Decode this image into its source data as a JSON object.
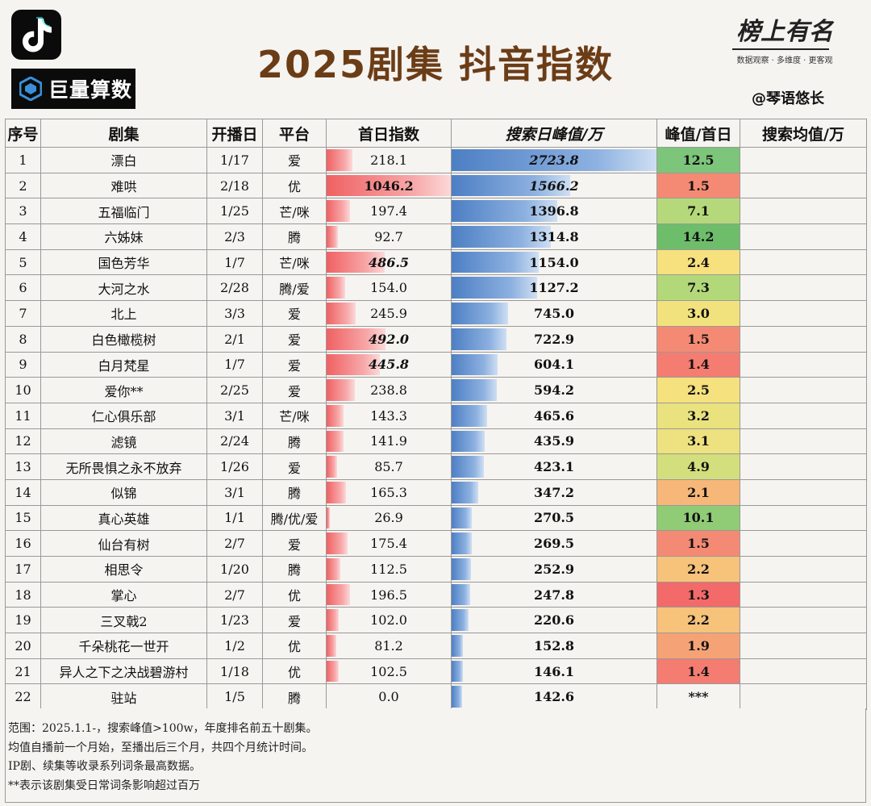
{
  "header": {
    "title": "2025剧集 抖音指数",
    "logo_text": "巨量算数",
    "brand_name": "榜上有名",
    "brand_slogan": "数据观察 · 多维度 · 更客观",
    "author": "@琴语悠长"
  },
  "columns": [
    "序号",
    "剧集",
    "开播日",
    "平台",
    "首日指数",
    "搜索日峰值/万",
    "峰值/首日",
    "搜索均值/万"
  ],
  "rows": [
    {
      "rank": "1",
      "name": "漂白",
      "date": "1/17",
      "platform": "爱",
      "first_day": "218.1",
      "first_day_num": 218.1,
      "peak": "2723.8",
      "peak_num": 2723.8,
      "ratio": "12.5",
      "avg": ""
    },
    {
      "rank": "2",
      "name": "难哄",
      "date": "2/18",
      "platform": "优",
      "first_day": "1046.2",
      "first_day_num": 1046.2,
      "peak": "1566.2",
      "peak_num": 1566.2,
      "ratio": "1.5",
      "avg": ""
    },
    {
      "rank": "3",
      "name": "五福临门",
      "date": "1/25",
      "platform": "芒/咪",
      "first_day": "197.4",
      "first_day_num": 197.4,
      "peak": "1396.8",
      "peak_num": 1396.8,
      "ratio": "7.1",
      "avg": ""
    },
    {
      "rank": "4",
      "name": "六姊妹",
      "date": "2/3",
      "platform": "腾",
      "first_day": "92.7",
      "first_day_num": 92.7,
      "peak": "1314.8",
      "peak_num": 1314.8,
      "ratio": "14.2",
      "avg": ""
    },
    {
      "rank": "5",
      "name": "国色芳华",
      "date": "1/7",
      "platform": "芒/咪",
      "first_day": "486.5",
      "first_day_num": 486.5,
      "peak": "1154.0",
      "peak_num": 1154.0,
      "ratio": "2.4",
      "avg": ""
    },
    {
      "rank": "6",
      "name": "大河之水",
      "date": "2/28",
      "platform": "腾/爱",
      "first_day": "154.0",
      "first_day_num": 154.0,
      "peak": "1127.2",
      "peak_num": 1127.2,
      "ratio": "7.3",
      "avg": ""
    },
    {
      "rank": "7",
      "name": "北上",
      "date": "3/3",
      "platform": "爱",
      "first_day": "245.9",
      "first_day_num": 245.9,
      "peak": "745.0",
      "peak_num": 745.0,
      "ratio": "3.0",
      "avg": ""
    },
    {
      "rank": "8",
      "name": "白色橄榄树",
      "date": "2/1",
      "platform": "爱",
      "first_day": "492.0",
      "first_day_num": 492.0,
      "peak": "722.9",
      "peak_num": 722.9,
      "ratio": "1.5",
      "avg": ""
    },
    {
      "rank": "9",
      "name": "白月梵星",
      "date": "1/7",
      "platform": "爱",
      "first_day": "445.8",
      "first_day_num": 445.8,
      "peak": "604.1",
      "peak_num": 604.1,
      "ratio": "1.4",
      "avg": ""
    },
    {
      "rank": "10",
      "name": "爱你**",
      "date": "2/25",
      "platform": "爱",
      "first_day": "238.8",
      "first_day_num": 238.8,
      "peak": "594.2",
      "peak_num": 594.2,
      "ratio": "2.5",
      "avg": ""
    },
    {
      "rank": "11",
      "name": "仁心俱乐部",
      "date": "3/1",
      "platform": "芒/咪",
      "first_day": "143.3",
      "first_day_num": 143.3,
      "peak": "465.6",
      "peak_num": 465.6,
      "ratio": "3.2",
      "avg": ""
    },
    {
      "rank": "12",
      "name": "滤镜",
      "date": "2/24",
      "platform": "腾",
      "first_day": "141.9",
      "first_day_num": 141.9,
      "peak": "435.9",
      "peak_num": 435.9,
      "ratio": "3.1",
      "avg": ""
    },
    {
      "rank": "13",
      "name": "无所畏惧之永不放弃",
      "date": "1/26",
      "platform": "爱",
      "first_day": "85.7",
      "first_day_num": 85.7,
      "peak": "423.1",
      "peak_num": 423.1,
      "ratio": "4.9",
      "avg": ""
    },
    {
      "rank": "14",
      "name": "似锦",
      "date": "3/1",
      "platform": "腾",
      "first_day": "165.3",
      "first_day_num": 165.3,
      "peak": "347.2",
      "peak_num": 347.2,
      "ratio": "2.1",
      "avg": ""
    },
    {
      "rank": "15",
      "name": "真心英雄",
      "date": "1/1",
      "platform": "腾/优/爱",
      "first_day": "26.9",
      "first_day_num": 26.9,
      "peak": "270.5",
      "peak_num": 270.5,
      "ratio": "10.1",
      "avg": ""
    },
    {
      "rank": "16",
      "name": "仙台有树",
      "date": "2/7",
      "platform": "爱",
      "first_day": "175.4",
      "first_day_num": 175.4,
      "peak": "269.5",
      "peak_num": 269.5,
      "ratio": "1.5",
      "avg": ""
    },
    {
      "rank": "17",
      "name": "相思令",
      "date": "1/20",
      "platform": "腾",
      "first_day": "112.5",
      "first_day_num": 112.5,
      "peak": "252.9",
      "peak_num": 252.9,
      "ratio": "2.2",
      "avg": ""
    },
    {
      "rank": "18",
      "name": "掌心",
      "date": "2/7",
      "platform": "优",
      "first_day": "196.5",
      "first_day_num": 196.5,
      "peak": "247.8",
      "peak_num": 247.8,
      "ratio": "1.3",
      "avg": ""
    },
    {
      "rank": "19",
      "name": "三叉戟2",
      "date": "1/23",
      "platform": "爱",
      "first_day": "102.0",
      "first_day_num": 102.0,
      "peak": "220.6",
      "peak_num": 220.6,
      "ratio": "2.2",
      "avg": ""
    },
    {
      "rank": "20",
      "name": "千朵桃花一世开",
      "date": "1/2",
      "platform": "优",
      "first_day": "81.2",
      "first_day_num": 81.2,
      "peak": "152.8",
      "peak_num": 152.8,
      "ratio": "1.9",
      "avg": ""
    },
    {
      "rank": "21",
      "name": "异人之下之决战碧游村",
      "date": "1/18",
      "platform": "优",
      "first_day": "102.5",
      "first_day_num": 102.5,
      "peak": "146.1",
      "peak_num": 146.1,
      "ratio": "1.4",
      "avg": ""
    },
    {
      "rank": "22",
      "name": "驻站",
      "date": "1/5",
      "platform": "腾",
      "first_day": "0.0",
      "first_day_num": 0.0,
      "peak": "142.6",
      "peak_num": 142.6,
      "ratio": "***",
      "avg": ""
    }
  ],
  "ratio_colors": {
    "12.5": "#7cc57a",
    "1.5": "#f58a74",
    "7.1": "#b5d97a",
    "14.2": "#6dbd6b",
    "2.4": "#f7e07e",
    "7.3": "#b2d87a",
    "3.0": "#f2e27e",
    "1.4": "#f47c70",
    "2.5": "#f5e17e",
    "3.2": "#e9e27f",
    "3.1": "#ede27f",
    "4.9": "#d3de7c",
    "2.1": "#f6b779",
    "10.1": "#90cb76",
    "2.2": "#f7c27a",
    "1.3": "#f26a69",
    "1.9": "#f5a376",
    "***": ""
  },
  "notes": [
    "范围：2025.1.1-，搜索峰值>100w，年度排名前五十剧集。",
    "均值自播前一个月始，至播出后三个月，共四个月统计时间。",
    "IP剧、续集等收录系列词条最高数据。",
    "**表示该剧集受日常词条影响超过百万"
  ]
}
